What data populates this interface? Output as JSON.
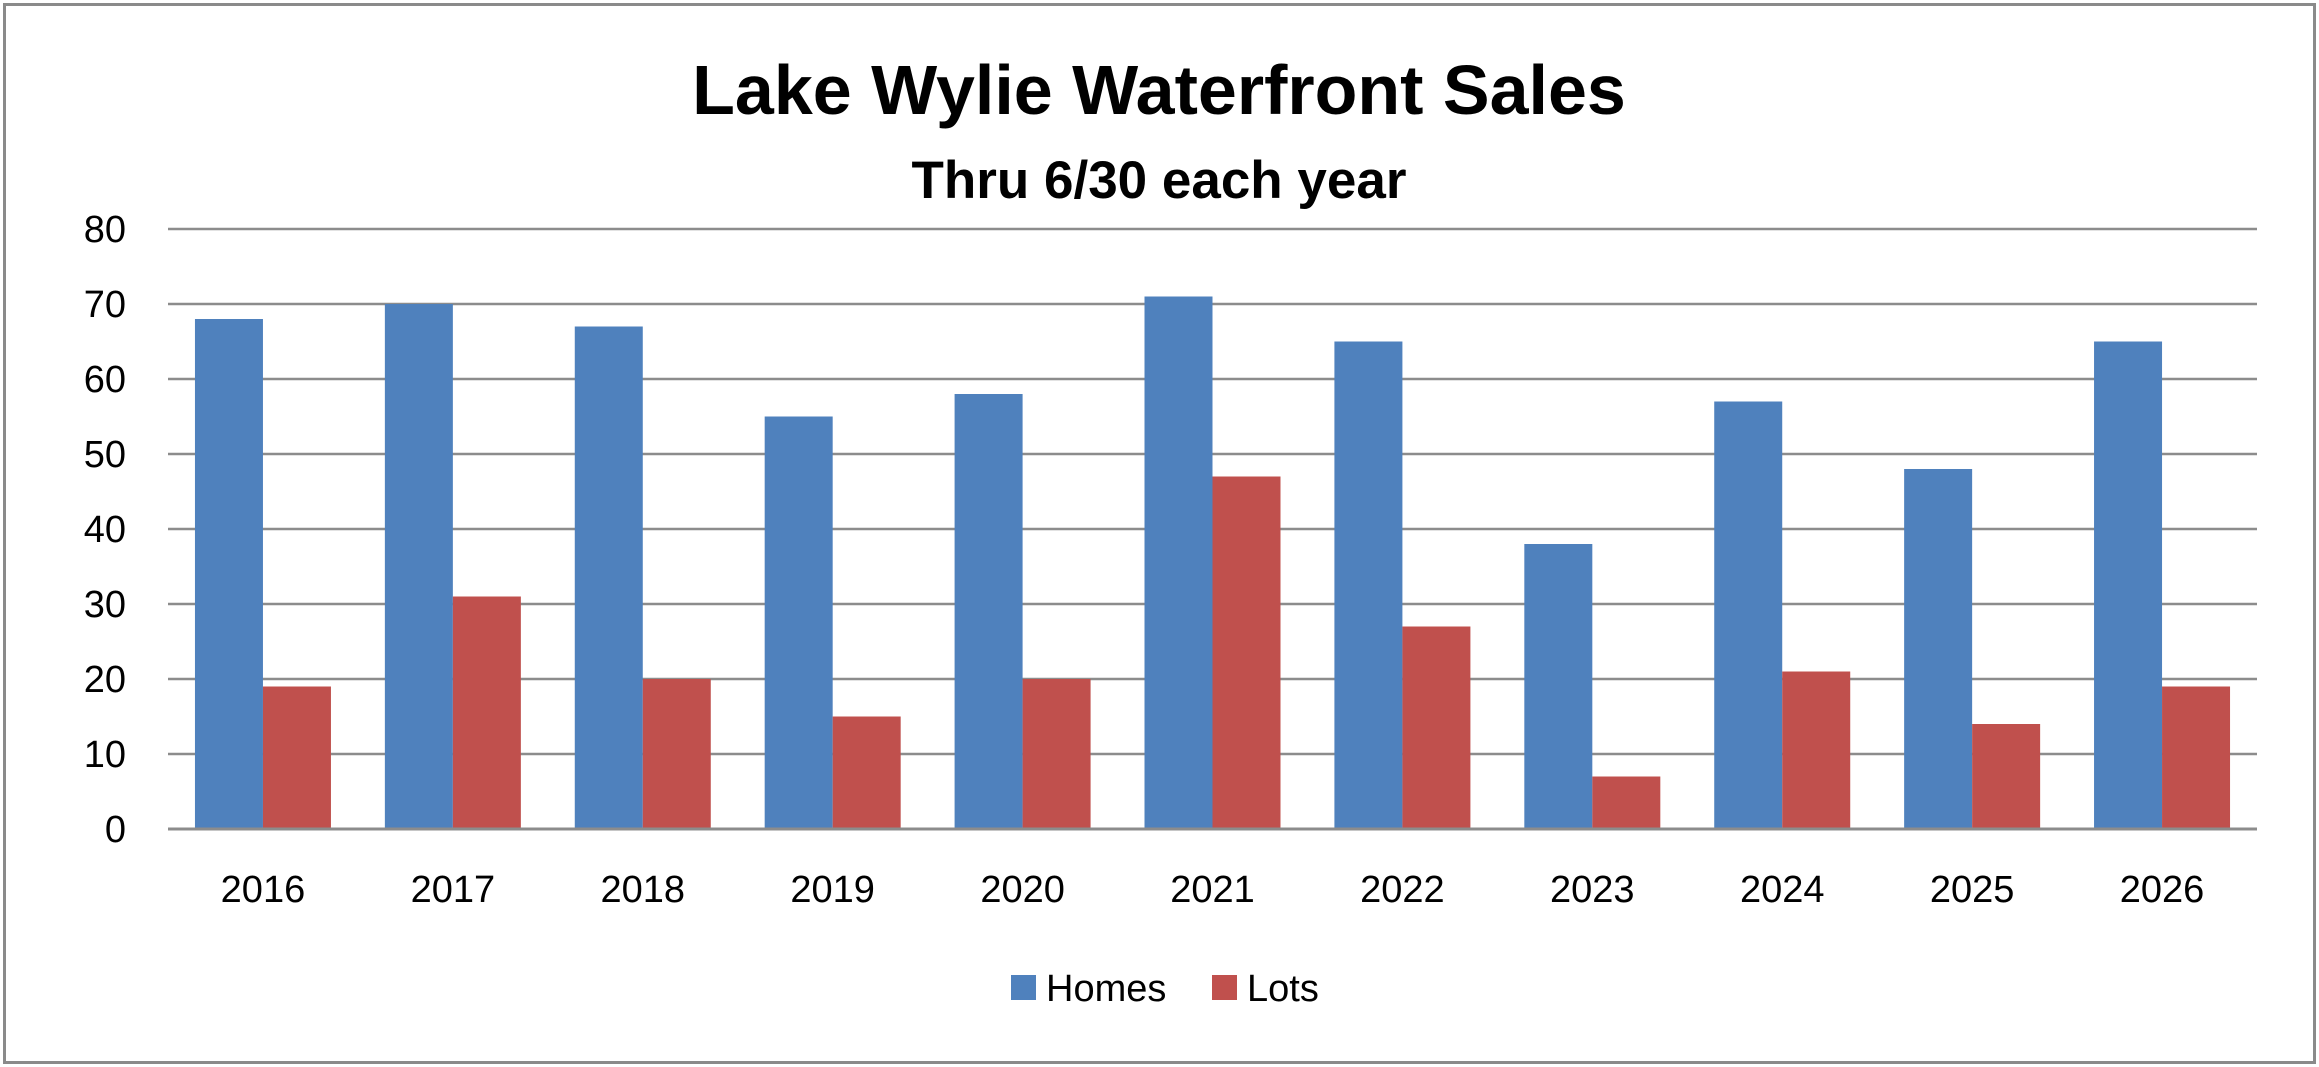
{
  "chart_data": {
    "type": "bar",
    "title": "Lake Wylie Waterfront Sales",
    "subtitle": "Thru 6/30 each year",
    "xlabel": "",
    "ylabel": "",
    "categories": [
      "2016",
      "2017",
      "2018",
      "2019",
      "2020",
      "2021",
      "2022",
      "2023",
      "2024",
      "2025",
      "2026"
    ],
    "series": [
      {
        "name": "Homes",
        "color": "#4f81bd",
        "values": [
          68,
          70,
          67,
          55,
          58,
          71,
          65,
          38,
          57,
          48,
          65
        ]
      },
      {
        "name": "Lots",
        "color": "#c0504d",
        "values": [
          19,
          31,
          20,
          15,
          20,
          47,
          27,
          7,
          21,
          14,
          19
        ]
      }
    ],
    "ylim": [
      0,
      80
    ],
    "yticks": [
      0,
      10,
      20,
      30,
      40,
      50,
      60,
      70,
      80
    ],
    "grid": true,
    "legend_position": "bottom"
  }
}
